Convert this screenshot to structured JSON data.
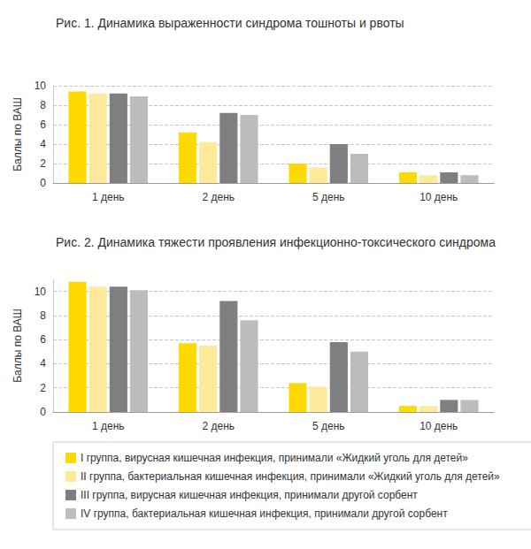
{
  "chart_data": [
    {
      "type": "bar",
      "title": "Рис. 1. Динамика выраженности синдрома тошноты и рвоты",
      "ylabel": "Баллы по ВАШ",
      "categories": [
        "1 день",
        "2 день",
        "5 день",
        "10 день"
      ],
      "series": [
        {
          "name": "I группа, вирусная кишечная инфекция, принимали «Жидкий уголь для детей»",
          "color": "#ffda00",
          "values": [
            9.4,
            5.2,
            2.0,
            1.1
          ]
        },
        {
          "name": "II группа, бактериальная кишечная инфекция, принимали «Жидкий уголь для детей»",
          "color": "#ffea9c",
          "values": [
            9.2,
            4.2,
            1.6,
            0.8
          ]
        },
        {
          "name": "III группа, вирусная кишечная инфекция, принимали другой сорбент",
          "color": "#7f7f81",
          "values": [
            9.2,
            7.2,
            4.0,
            1.1
          ]
        },
        {
          "name": "IV группа, бактериальная кишечная инфекция, принимали другой сорбент",
          "color": "#bcbcbe",
          "values": [
            8.9,
            7.0,
            3.0,
            0.8
          ]
        }
      ],
      "ylim": [
        0,
        10
      ],
      "yticks": [
        0,
        2,
        4,
        6,
        8,
        10
      ],
      "grid": true,
      "legend": "bottom"
    },
    {
      "type": "bar",
      "title": "Рис. 2. Динамика тяжести проявления инфекционно-токсического синдрома",
      "ylabel": "Баллы по ВАШ",
      "categories": [
        "1 день",
        "2 день",
        "5 день",
        "10 день"
      ],
      "series": [
        {
          "name": "I группа, вирусная кишечная инфекция, принимали «Жидкий уголь для детей»",
          "color": "#ffda00",
          "values": [
            10.8,
            5.7,
            2.4,
            0.5
          ]
        },
        {
          "name": "II группа, бактериальная кишечная инфекция, принимали «Жидкий уголь для детей»",
          "color": "#ffea9c",
          "values": [
            10.4,
            5.5,
            2.1,
            0.5
          ]
        },
        {
          "name": "III группа, вирусная кишечная инфекция, принимали другой сорбент",
          "color": "#7f7f81",
          "values": [
            10.4,
            9.2,
            5.8,
            1.0
          ]
        },
        {
          "name": "IV группа, бактериальная кишечная инфекция, принимали другой сорбент",
          "color": "#bcbcbe",
          "values": [
            10.1,
            7.6,
            5.0,
            1.0
          ]
        }
      ],
      "ylim": [
        0,
        11
      ],
      "yticks": [
        0,
        2,
        4,
        6,
        8,
        10
      ],
      "grid": true,
      "legend": "bottom"
    }
  ]
}
